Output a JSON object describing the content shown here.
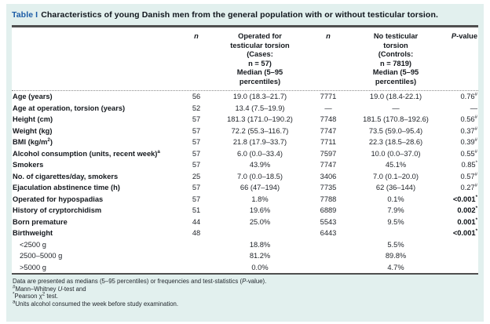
{
  "colors": {
    "panel_bg": "#e2f0ee",
    "accent_blue": "#1b5ca6",
    "rule": "#4f4f4f"
  },
  "table": {
    "label": "Table I",
    "title": "Characteristics of young Danish men from the general population with or without testicular torsion.",
    "columns": {
      "row_header": "",
      "n_cases": "n",
      "cases_lines": [
        "Operated for",
        "testicular torsion",
        "(Cases:",
        "n = 57)",
        "Median (5–95",
        "percentiles)"
      ],
      "n_controls": "n",
      "controls_lines": [
        "No testicular",
        "torsion",
        "(Controls:",
        "n = 7819)",
        "Median (5–95",
        "percentiles)"
      ],
      "pvalue": {
        "italic": "P",
        "rest": "-value"
      }
    },
    "rows": [
      {
        "label": "Age (years)",
        "label_sup": "",
        "n1": "56",
        "cases": "19.0 (18.3–21.7)",
        "n2": "7771",
        "controls": "19.0 (18.4-22.1)",
        "p": "0.76",
        "p_sup": "#",
        "p_bold": false,
        "indent": false
      },
      {
        "label": "Age at operation, torsion (years)",
        "label_sup": "",
        "n1": "52",
        "cases": "13.4 (7.5–19.9)",
        "n2": "—",
        "controls": "—",
        "p": "—",
        "p_sup": "",
        "p_bold": false,
        "indent": false
      },
      {
        "label": "Height (cm)",
        "label_sup": "",
        "n1": "57",
        "cases": "181.3 (171.0–190.2)",
        "n2": "7748",
        "controls": "181.5 (170.8–192.6)",
        "p": "0.56",
        "p_sup": "#",
        "p_bold": false,
        "indent": false
      },
      {
        "label": "Weight (kg)",
        "label_sup": "",
        "n1": "57",
        "cases": "72.2 (55.3–116.7)",
        "n2": "7747",
        "controls": "73.5 (59.0–95.4)",
        "p": "0.37",
        "p_sup": "#",
        "p_bold": false,
        "indent": false
      },
      {
        "label": "BMI (kg/m",
        "label_sup": "2",
        "label_post": ")",
        "n1": "57",
        "cases": "21.8 (17.9–33.7)",
        "n2": "7711",
        "controls": "22.3 (18.5–28.6)",
        "p": "0.39",
        "p_sup": "#",
        "p_bold": false,
        "indent": false
      },
      {
        "label": "Alcohol consumption (units, recent week)",
        "label_sup": "a",
        "n1": "57",
        "cases": "6.0 (0.0–33.4)",
        "n2": "7597",
        "controls": "10.0 (0.0–37.0)",
        "p": "0.55",
        "p_sup": "#",
        "p_bold": false,
        "indent": false
      },
      {
        "label": "Smokers",
        "label_sup": "",
        "n1": "57",
        "cases": "43.9%",
        "n2": "7747",
        "controls": "45.1%",
        "p": "0.85",
        "p_sup": "*",
        "p_bold": false,
        "indent": false
      },
      {
        "label": "No. of cigarettes/day, smokers",
        "label_sup": "",
        "n1": "25",
        "cases": "7.0 (0.0–18.5)",
        "n2": "3406",
        "controls": "7.0 (0.1–20.0)",
        "p": "0.57",
        "p_sup": "#",
        "p_bold": false,
        "indent": false
      },
      {
        "label": "Ejaculation abstinence time (h)",
        "label_sup": "",
        "n1": "57",
        "cases": "66 (47–194)",
        "n2": "7735",
        "controls": "62 (36–144)",
        "p": "0.27",
        "p_sup": "#",
        "p_bold": false,
        "indent": false
      },
      {
        "label": "Operated for hypospadias",
        "label_sup": "",
        "n1": "57",
        "cases": "1.8%",
        "n2": "7788",
        "controls": "0.1%",
        "p": "<0.001",
        "p_sup": "*",
        "p_bold": true,
        "indent": false
      },
      {
        "label": "History of cryptorchidism",
        "label_sup": "",
        "n1": "51",
        "cases": "19.6%",
        "n2": "6889",
        "controls": "7.9%",
        "p": "0.002",
        "p_sup": "*",
        "p_bold": true,
        "indent": false
      },
      {
        "label": "Born premature",
        "label_sup": "",
        "n1": "44",
        "cases": "25.0%",
        "n2": "5543",
        "controls": "9.5%",
        "p": "0.001",
        "p_sup": "*",
        "p_bold": true,
        "indent": false
      },
      {
        "label": "Birthweight",
        "label_sup": "",
        "n1": "48",
        "cases": "",
        "n2": "6443",
        "controls": "",
        "p": "<0.001",
        "p_sup": "*",
        "p_bold": true,
        "indent": false
      },
      {
        "label": "<2500 g",
        "label_sup": "",
        "n1": "",
        "cases": "18.8%",
        "n2": "",
        "controls": "5.5%",
        "p": "",
        "p_sup": "",
        "p_bold": false,
        "indent": true
      },
      {
        "label": "2500–5000 g",
        "label_sup": "",
        "n1": "",
        "cases": "81.2%",
        "n2": "",
        "controls": "89.8%",
        "p": "",
        "p_sup": "",
        "p_bold": false,
        "indent": true
      },
      {
        "label": ">5000 g",
        "label_sup": "",
        "n1": "",
        "cases": "0.0%",
        "n2": "",
        "controls": "4.7%",
        "p": "",
        "p_sup": "",
        "p_bold": false,
        "indent": true
      }
    ],
    "footnotes": [
      {
        "segments": [
          {
            "t": "Data are presented as medians (5–95 percentiles) or frequencies and test-statistics (",
            "s": "n"
          },
          {
            "t": "P",
            "s": "i"
          },
          {
            "t": "-value).",
            "s": "n"
          }
        ]
      },
      {
        "segments": [
          {
            "t": "#",
            "s": "sup"
          },
          {
            "t": "Mann–Whitney ",
            "s": "n"
          },
          {
            "t": "U",
            "s": "i"
          },
          {
            "t": "-test and",
            "s": "n"
          }
        ]
      },
      {
        "segments": [
          {
            "t": "*",
            "s": "sup"
          },
          {
            "t": "Pearson χ",
            "s": "n"
          },
          {
            "t": "2",
            "s": "sup"
          },
          {
            "t": " test.",
            "s": "n"
          }
        ]
      },
      {
        "segments": [
          {
            "t": "a",
            "s": "sup"
          },
          {
            "t": "Units alcohol consumed the week before study examination.",
            "s": "n"
          }
        ]
      }
    ]
  }
}
